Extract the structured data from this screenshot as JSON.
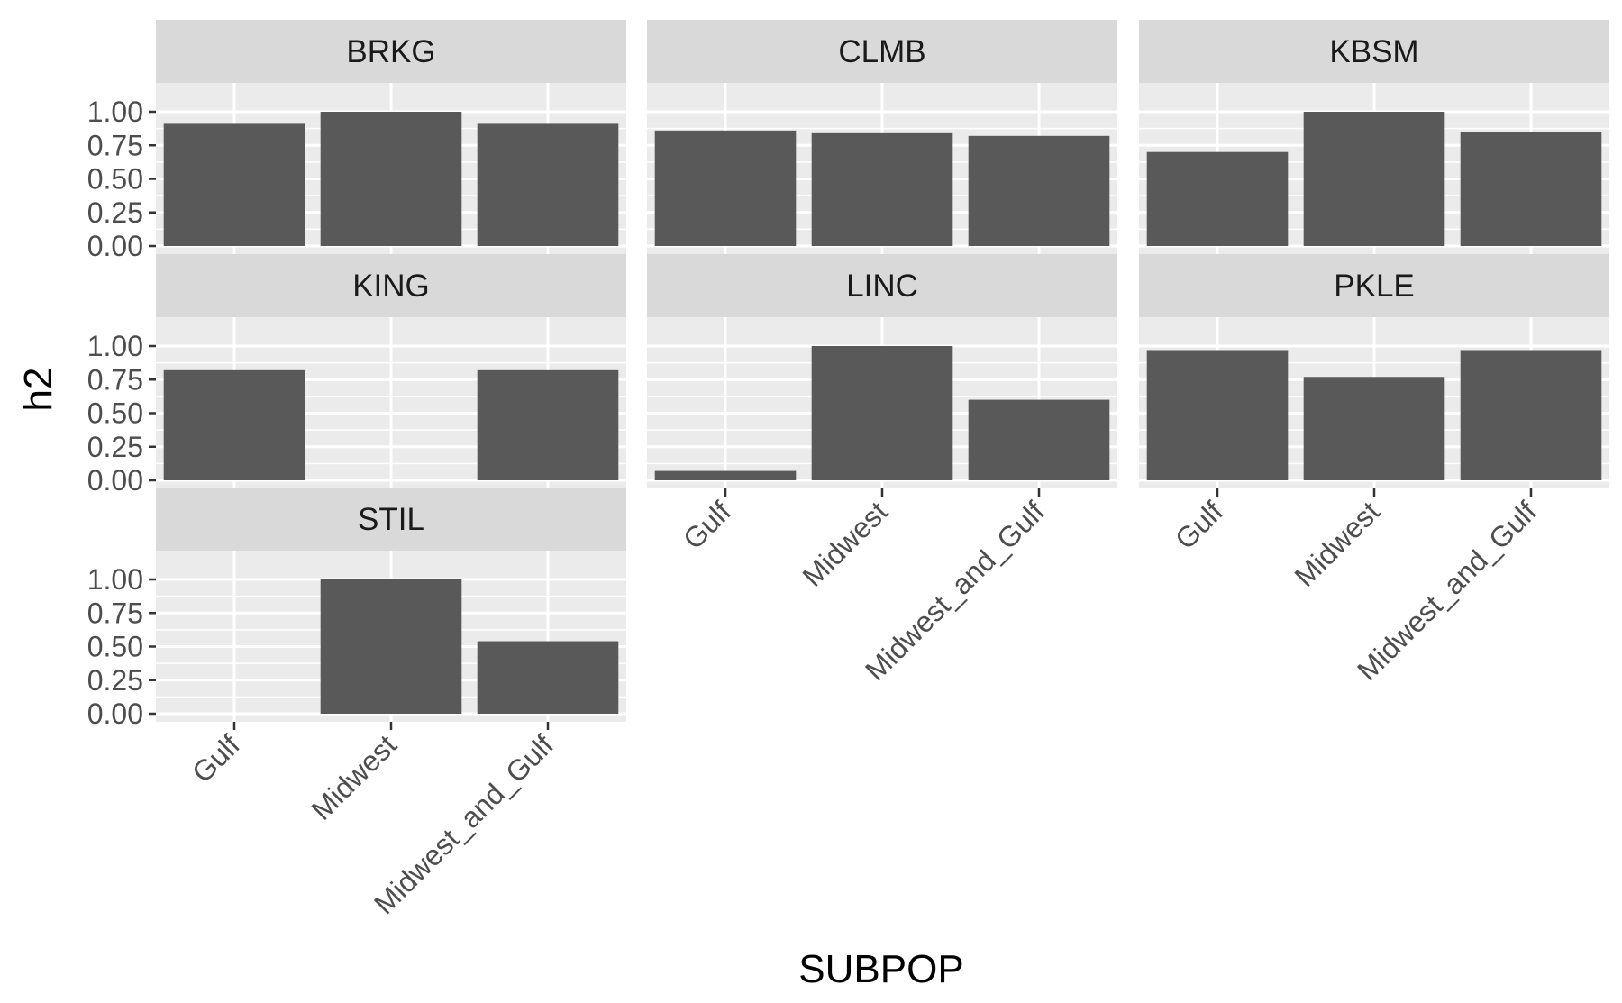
{
  "chart_data": {
    "type": "bar",
    "facet_by": "subpopulation panel",
    "xlabel": "SUBPOP",
    "ylabel": "h2",
    "categories": [
      "Gulf",
      "Midwest",
      "Midwest_and_Gulf"
    ],
    "ylim": [
      0,
      1
    ],
    "yticks": [
      "0.00",
      "0.25",
      "0.50",
      "0.75",
      "1.00"
    ],
    "grid": true,
    "facets": [
      {
        "name": "BRKG",
        "values": [
          0.91,
          1.0,
          0.91
        ]
      },
      {
        "name": "CLMB",
        "values": [
          0.86,
          0.84,
          0.82
        ]
      },
      {
        "name": "KBSM",
        "values": [
          0.7,
          1.0,
          0.85
        ]
      },
      {
        "name": "KING",
        "values": [
          0.82,
          null,
          0.82
        ]
      },
      {
        "name": "LINC",
        "values": [
          0.07,
          1.0,
          0.6
        ]
      },
      {
        "name": "PKLE",
        "values": [
          0.97,
          0.77,
          0.97
        ]
      },
      {
        "name": "STIL",
        "values": [
          null,
          1.0,
          0.54
        ]
      }
    ],
    "colors": {
      "bar": "#595959",
      "panel_background": "#ebebeb",
      "strip_background": "#d9d9d9",
      "grid": "#ffffff"
    }
  }
}
